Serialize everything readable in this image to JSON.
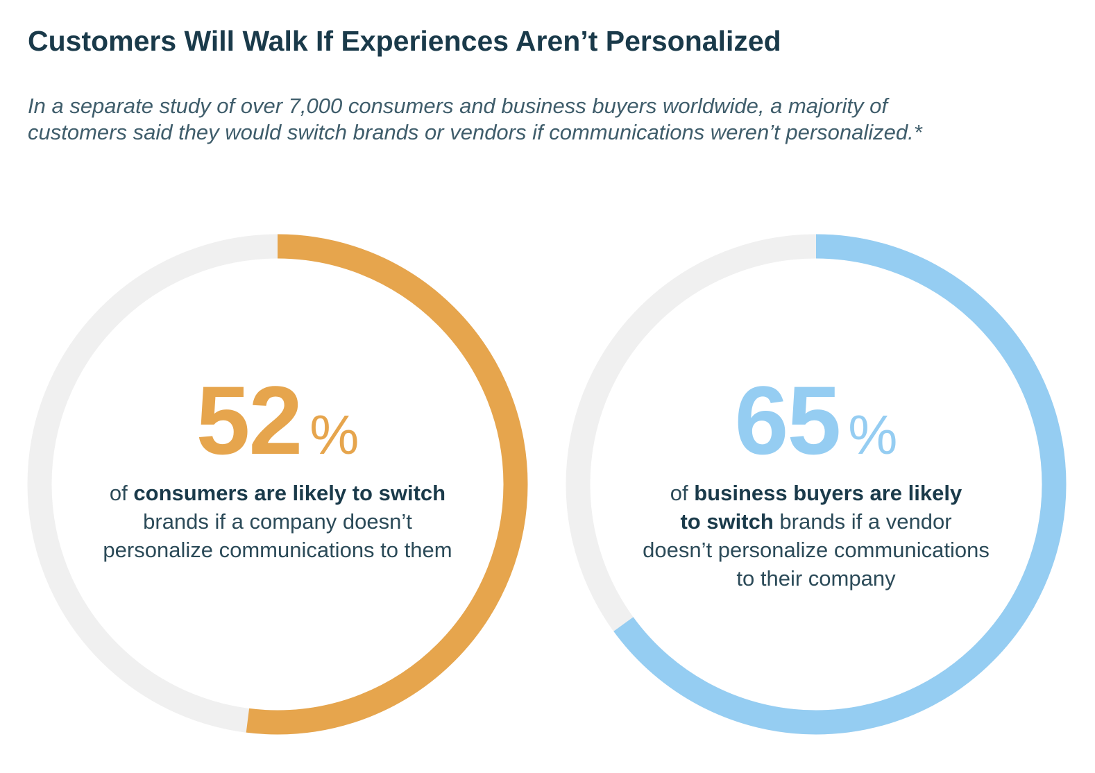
{
  "title": "Customers Will Walk If Experiences Aren’t Personalized",
  "subtitle": {
    "line1": "In a separate study of over 7,000 consumers and business buyers worldwide, a majority of",
    "line2": "customers said they would switch brands or vendors if communications weren’t personalized.*"
  },
  "colors": {
    "track": "#f0f0f0",
    "consumers": "#e6a54d",
    "business": "#95cdf2"
  },
  "chart_data": [
    {
      "type": "pie",
      "series": [
        {
          "values": [
            52,
            48
          ]
        }
      ],
      "value_percent": 52,
      "number": "52",
      "unit": "%",
      "description": {
        "l1_pre": "of ",
        "l1_bold": "consumers are likely to switch",
        "l2": "brands if a company doesn’t",
        "l3": "personalize communications to them"
      }
    },
    {
      "type": "pie",
      "series": [
        {
          "values": [
            65,
            35
          ]
        }
      ],
      "value_percent": 65,
      "number": "65",
      "unit": "%",
      "description": {
        "l1_pre": "of ",
        "l1_bold": "business buyers are likely",
        "l2_bold": "to switch",
        "l2_rest": " brands if a vendor",
        "l3": "doesn’t personalize communications",
        "l4": "to their company"
      }
    }
  ]
}
